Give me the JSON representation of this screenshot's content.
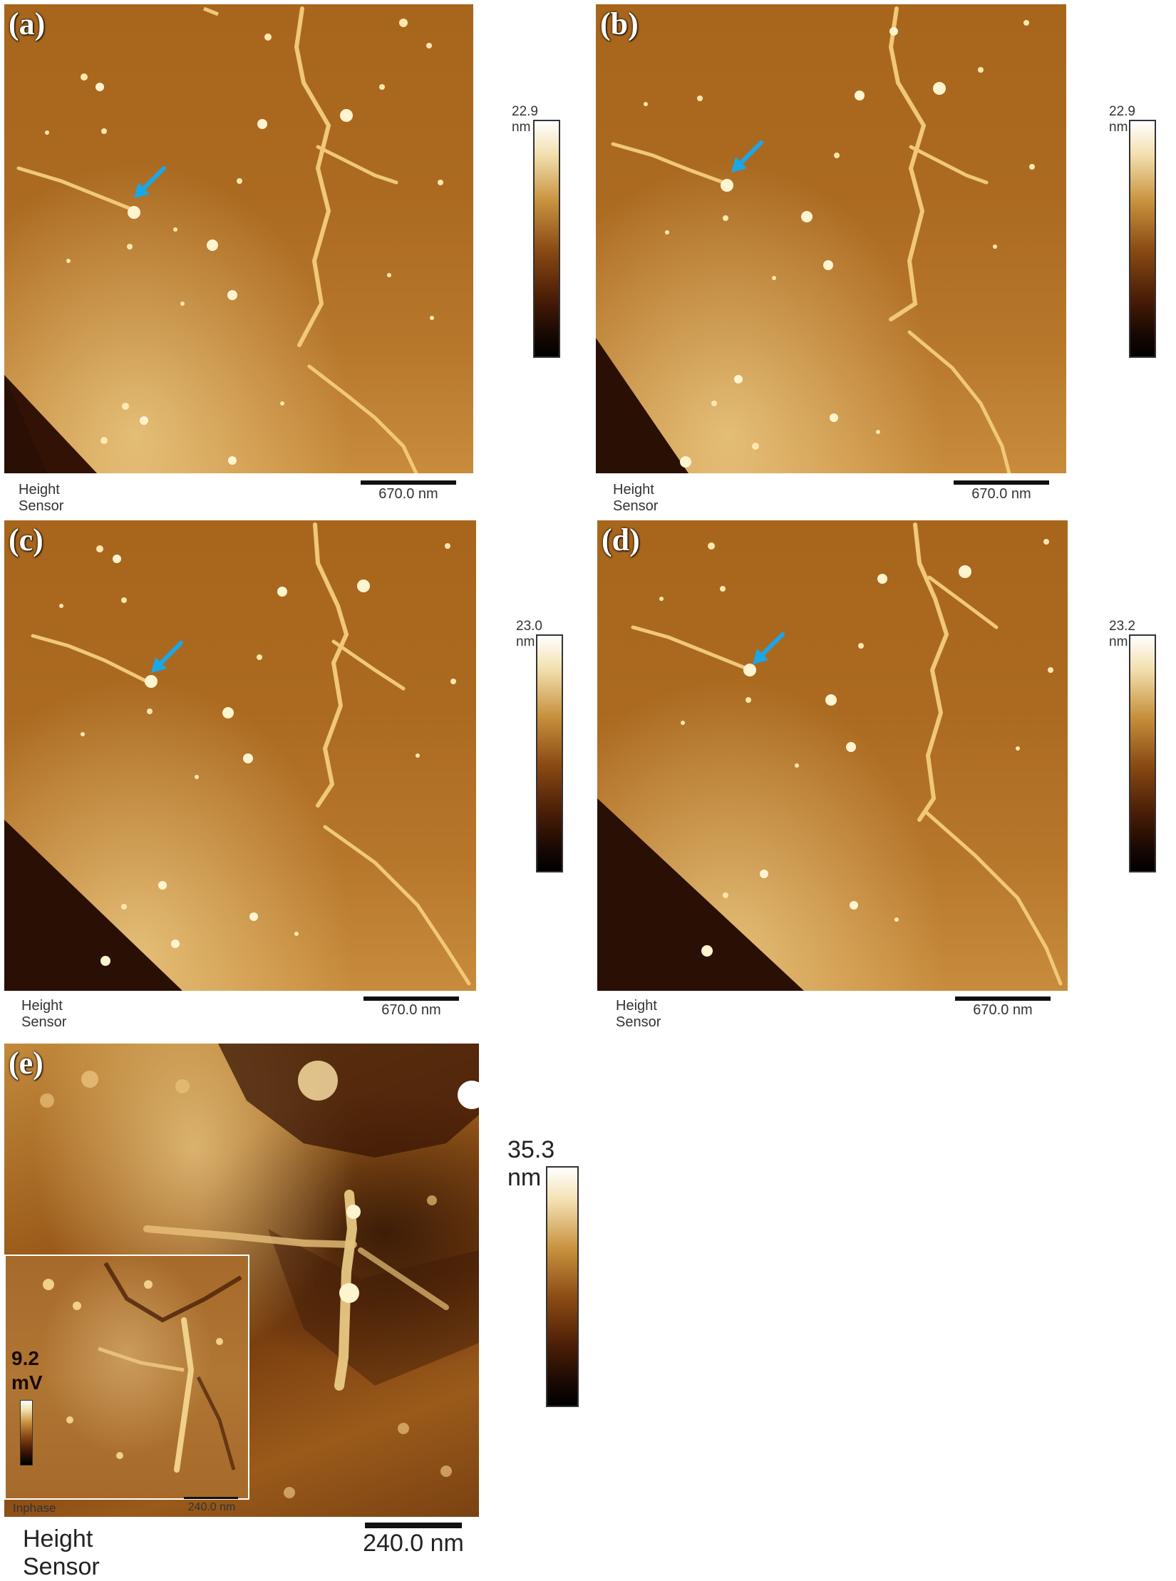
{
  "panels": [
    {
      "label": "(a)",
      "sensor": "Height Sensor",
      "scale_bar": "670.0 nm",
      "color_max": "22.9 nm"
    },
    {
      "label": "(b)",
      "sensor": "Height Sensor",
      "scale_bar": "670.0 nm",
      "color_max": "22.9 nm"
    },
    {
      "label": "(c)",
      "sensor": "Height Sensor",
      "scale_bar": "670.0 nm",
      "color_max": "23.0 nm"
    },
    {
      "label": "(d)",
      "sensor": "Height Sensor",
      "scale_bar": "670.0 nm",
      "color_max": "23.2 nm"
    }
  ],
  "panel_e": {
    "label": "(e)",
    "sensor": "Height Sensor",
    "scale_bar": "240.0 nm",
    "color_max": "35.3 nm",
    "inset": {
      "sensor": "Inphase",
      "scale_bar": "240.0 nm",
      "color_max_value": "9.2",
      "color_max_unit": "mV"
    }
  },
  "colors": {
    "arrow": "#1aa7e8",
    "substrate": "#ab6a20",
    "highlight": "#fff4d0"
  }
}
